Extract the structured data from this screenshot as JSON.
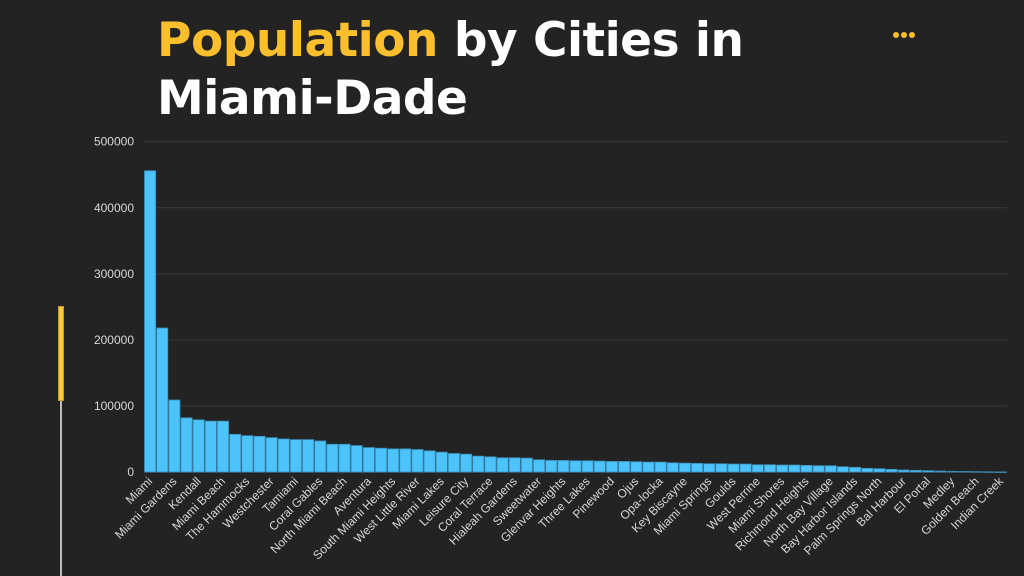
{
  "header": {
    "title_accent": "Population",
    "title_rest": " by Cities in Miami-Dade",
    "menu_icon": "more-dots-icon"
  },
  "colors": {
    "accent": "#fbbf2e",
    "bar": "#4cc3fb",
    "bar_border": "#3a8fb8",
    "background": "#232323",
    "grid": "#3a3a3a"
  },
  "chart_data": {
    "type": "bar",
    "title": "Population by Cities in Miami-Dade",
    "xlabel": "",
    "ylabel": "",
    "ylim": [
      0,
      500000
    ],
    "yticks": [
      0,
      100000,
      200000,
      300000,
      400000,
      500000
    ],
    "ytick_labels": [
      "0",
      "100000",
      "200000",
      "300000",
      "400000",
      "500000"
    ],
    "grid": true,
    "legend": "none",
    "categories": [
      "Miami",
      "",
      "Miami Gardens",
      "",
      "Kendall",
      "",
      "Miami Beach",
      "",
      "The Hammocks",
      "",
      "Westchester",
      "",
      "Tamiami",
      "",
      "Coral Gables",
      "",
      "North Miami Beach",
      "",
      "Aventura",
      "",
      "South Miami Heights",
      "",
      "West Little River",
      "",
      "Miami Lakes",
      "",
      "Leisure City",
      "",
      "Coral Terrace",
      "",
      "Hialeah Gardens",
      "",
      "Sweetwater",
      "",
      "Glenvar Heights",
      "",
      "Three Lakes",
      "",
      "Pinewood",
      "",
      "Ojus",
      "",
      "Opa-locka",
      "",
      "Key Biscayne",
      "",
      "Miami Springs",
      "",
      "Goulds",
      "",
      "West Perrine",
      "",
      "Miami Shores",
      "",
      "Richmond Heights",
      "",
      "North Bay Village",
      "",
      "Bay Harbor Islands",
      "",
      "Palm Springs North",
      "",
      "Bal Harbour",
      "",
      "El Portal",
      "",
      "Medley",
      "",
      "Golden Beach",
      "",
      "Indian Creek"
    ],
    "values": [
      456000,
      218000,
      109000,
      82000,
      79000,
      77000,
      77000,
      57000,
      55000,
      54000,
      52000,
      50000,
      49000,
      49000,
      47000,
      42000,
      42000,
      40000,
      37000,
      36000,
      35000,
      35000,
      34000,
      32000,
      30000,
      28000,
      27000,
      24000,
      23000,
      21500,
      21500,
      21000,
      18500,
      17500,
      17500,
      17000,
      17000,
      16500,
      16000,
      16000,
      15500,
      15000,
      15000,
      14000,
      13500,
      13000,
      12500,
      12500,
      12000,
      12000,
      11000,
      11000,
      10500,
      10500,
      10000,
      9500,
      9500,
      8000,
      7000,
      5500,
      5000,
      4000,
      3000,
      2500,
      2000,
      1500,
      1000,
      800,
      500,
      300,
      100
    ]
  }
}
